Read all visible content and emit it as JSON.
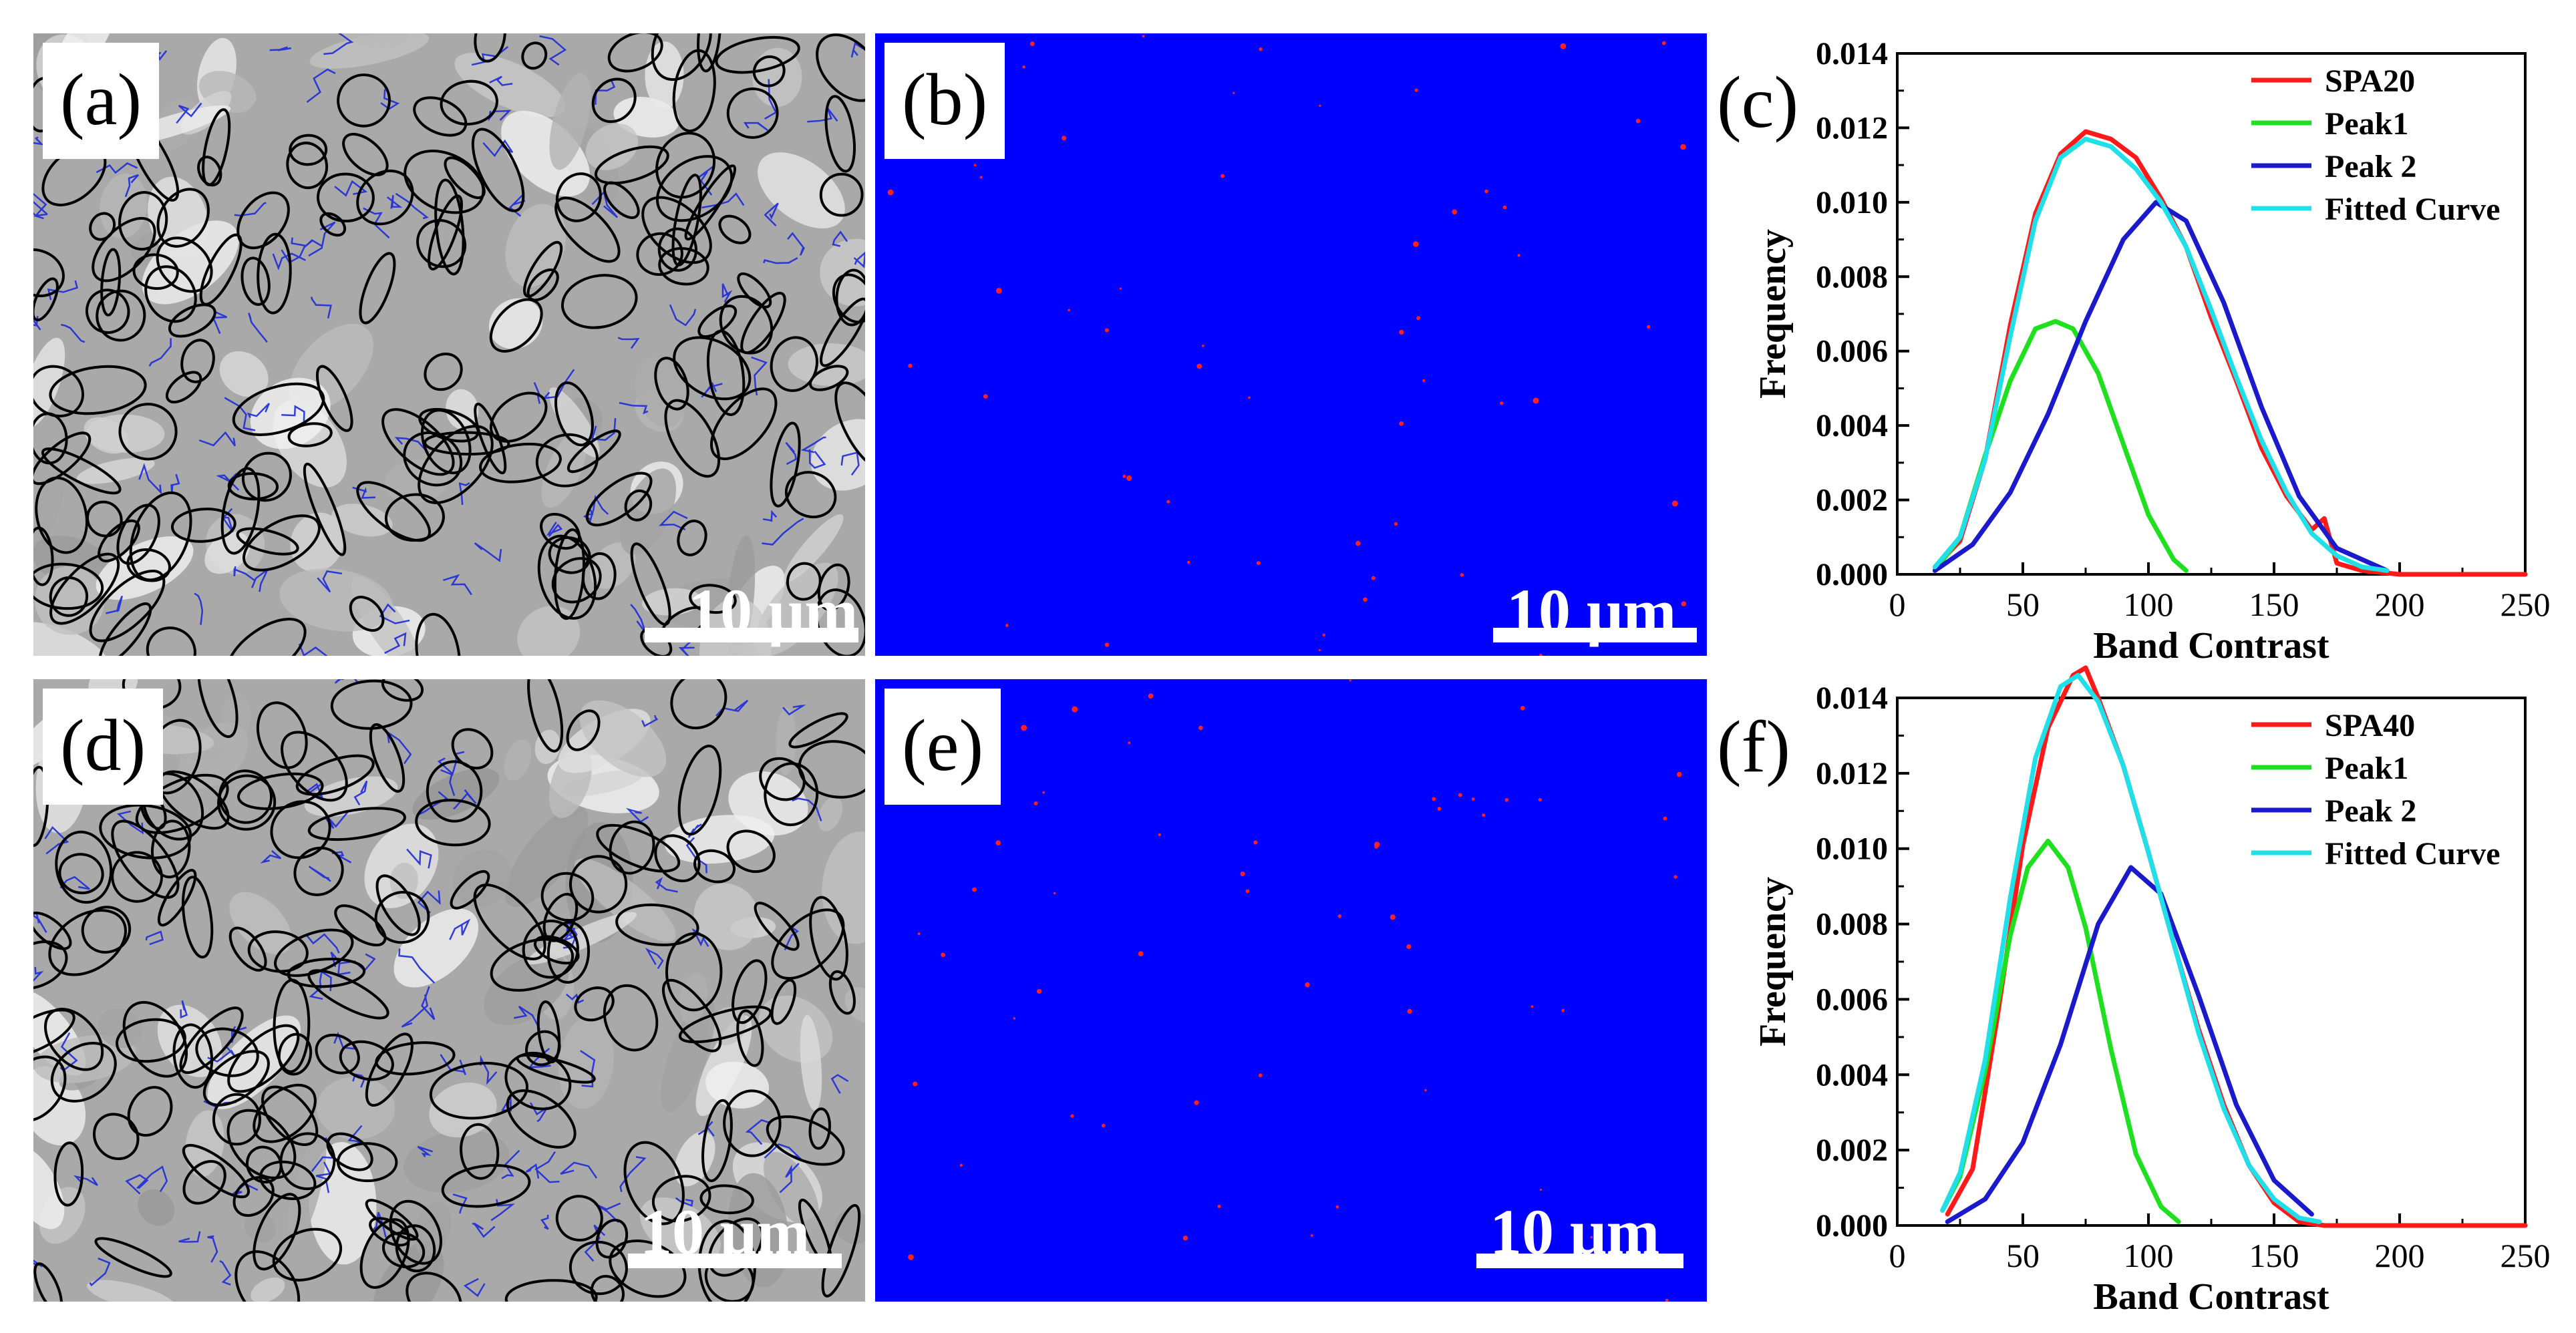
{
  "panels": {
    "a": {
      "label": "(a)",
      "scale_text": "10 μm"
    },
    "b": {
      "label": "(b)",
      "scale_text": "10 μm"
    },
    "d": {
      "label": "(d)",
      "scale_text": "10 μm"
    },
    "e": {
      "label": "(e)",
      "scale_text": "10 μm"
    }
  },
  "colors": {
    "micrograph_bg": "#a9a9a9",
    "high_angle_boundary": "#000000",
    "low_angle_boundary": "#1f2bd8",
    "phase_bg": "#0000ff",
    "phase_spot": "#ff2020"
  },
  "chart_data": [
    {
      "panel_label": "(c)",
      "type": "line",
      "xlabel": "Band Contrast",
      "ylabel": "Frequency",
      "xlim": [
        0,
        250
      ],
      "ylim": [
        0,
        0.014
      ],
      "xticks": [
        0,
        50,
        100,
        150,
        200,
        250
      ],
      "yticks": [
        "0.000",
        "0.002",
        "0.004",
        "0.006",
        "0.008",
        "0.010",
        "0.012",
        "0.014"
      ],
      "legend_position": "top-right",
      "series": [
        {
          "name": "SPA20",
          "color": "#ff1a1a",
          "x": [
            15,
            25,
            35,
            45,
            55,
            65,
            75,
            85,
            95,
            105,
            115,
            125,
            135,
            145,
            155,
            165,
            170,
            175,
            185,
            200,
            250
          ],
          "y": [
            0.0002,
            0.0009,
            0.0031,
            0.0067,
            0.0097,
            0.0113,
            0.0119,
            0.0117,
            0.0112,
            0.0101,
            0.0088,
            0.0069,
            0.0052,
            0.0034,
            0.0021,
            0.0012,
            0.0015,
            0.0003,
            0.0001,
            0.0,
            0.0
          ]
        },
        {
          "name": "Peak1",
          "color": "#1fe01f",
          "x": [
            15,
            25,
            35,
            45,
            55,
            63,
            70,
            80,
            90,
            100,
            110,
            115
          ],
          "y": [
            0.0001,
            0.001,
            0.0032,
            0.0052,
            0.0066,
            0.0068,
            0.0066,
            0.0054,
            0.0035,
            0.0016,
            0.0004,
            0.0001
          ]
        },
        {
          "name": "Peak 2",
          "color": "#1a1acc",
          "x": [
            15,
            30,
            45,
            60,
            75,
            90,
            103,
            115,
            130,
            145,
            160,
            175,
            195
          ],
          "y": [
            0.0001,
            0.0008,
            0.0022,
            0.0043,
            0.0068,
            0.009,
            0.01,
            0.0095,
            0.0073,
            0.0045,
            0.0021,
            0.0007,
            0.0001
          ]
        },
        {
          "name": "Fitted Curve",
          "color": "#1fe0e8",
          "x": [
            15,
            25,
            35,
            45,
            55,
            65,
            75,
            85,
            95,
            105,
            115,
            125,
            135,
            145,
            155,
            165,
            175,
            185,
            195
          ],
          "y": [
            0.0002,
            0.001,
            0.0031,
            0.0064,
            0.0095,
            0.0112,
            0.0117,
            0.0115,
            0.0109,
            0.01,
            0.0088,
            0.0071,
            0.0053,
            0.0036,
            0.0022,
            0.0011,
            0.0005,
            0.0002,
            0.0001
          ]
        }
      ]
    },
    {
      "panel_label": "(f)",
      "type": "line",
      "xlabel": "Band Contrast",
      "ylabel": "Frequency",
      "xlim": [
        0,
        250
      ],
      "ylim": [
        0,
        0.014
      ],
      "xticks": [
        0,
        50,
        100,
        150,
        200,
        250
      ],
      "yticks": [
        "0.000",
        "0.002",
        "0.004",
        "0.006",
        "0.008",
        "0.010",
        "0.012",
        "0.014"
      ],
      "legend_position": "top-right",
      "series": [
        {
          "name": "SPA40",
          "color": "#ff1a1a",
          "x": [
            20,
            30,
            40,
            50,
            60,
            70,
            75,
            80,
            90,
            100,
            110,
            120,
            130,
            140,
            150,
            160,
            170,
            200,
            250
          ],
          "y": [
            0.0003,
            0.0015,
            0.0056,
            0.0101,
            0.0132,
            0.0146,
            0.0148,
            0.014,
            0.0122,
            0.0099,
            0.0075,
            0.0052,
            0.0032,
            0.0016,
            0.0006,
            0.0001,
            0.0,
            0.0,
            0.0
          ]
        },
        {
          "name": "Peak1",
          "color": "#1fe01f",
          "x": [
            18,
            25,
            35,
            45,
            52,
            60,
            68,
            75,
            85,
            95,
            105,
            112
          ],
          "y": [
            0.0004,
            0.0013,
            0.0041,
            0.0077,
            0.0095,
            0.0102,
            0.0095,
            0.0079,
            0.0047,
            0.0019,
            0.0005,
            0.0001
          ]
        },
        {
          "name": "Peak 2",
          "color": "#1a1acc",
          "x": [
            20,
            35,
            50,
            65,
            80,
            93,
            105,
            120,
            135,
            150,
            165
          ],
          "y": [
            0.0001,
            0.0007,
            0.0022,
            0.0048,
            0.008,
            0.0095,
            0.0088,
            0.0061,
            0.0032,
            0.0012,
            0.0003
          ]
        },
        {
          "name": "Fitted Curve",
          "color": "#1fe0e8",
          "x": [
            18,
            25,
            35,
            45,
            55,
            65,
            72,
            80,
            90,
            100,
            110,
            120,
            130,
            140,
            150,
            160,
            168
          ],
          "y": [
            0.0004,
            0.0014,
            0.0044,
            0.0087,
            0.0124,
            0.0143,
            0.0146,
            0.0139,
            0.0122,
            0.0099,
            0.0075,
            0.0051,
            0.0031,
            0.0016,
            0.0007,
            0.0002,
            0.0001
          ]
        }
      ]
    }
  ]
}
